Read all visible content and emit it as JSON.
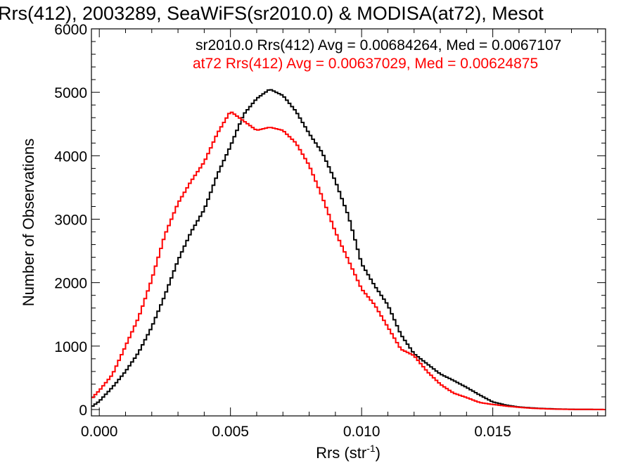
{
  "chart_data": {
    "type": "line",
    "title": "Rrs(412), 2003289, SeaWiFS(sr2010.0) & MODISA(at72), Mesot",
    "xlabel": "Rrs (str",
    "xlabel_sup": "-1",
    "xlabel_close": ")",
    "ylabel": "Number of Observations",
    "xlim": [
      -0.0003,
      0.0193
    ],
    "ylim": [
      -100,
      6000
    ],
    "x_ticks": [
      {
        "value": 0.0,
        "label": "0.000"
      },
      {
        "value": 0.005,
        "label": "0.005"
      },
      {
        "value": 0.01,
        "label": "0.010"
      },
      {
        "value": 0.015,
        "label": "0.015"
      }
    ],
    "y_ticks": [
      {
        "value": 0,
        "label": "0"
      },
      {
        "value": 1000,
        "label": "1000"
      },
      {
        "value": 2000,
        "label": "2000"
      },
      {
        "value": 3000,
        "label": "3000"
      },
      {
        "value": 4000,
        "label": "4000"
      },
      {
        "value": 5000,
        "label": "5000"
      },
      {
        "value": 6000,
        "label": "6000"
      }
    ],
    "grid": false,
    "legend_position": "top-right",
    "series": [
      {
        "name": "sr2010.0 Rrs(412) Avg = 0.00684264, Med = 0.0067107",
        "color": "#000000",
        "x": [
          -0.0003,
          0.0,
          0.0005,
          0.001,
          0.0015,
          0.002,
          0.0025,
          0.003,
          0.0035,
          0.004,
          0.0045,
          0.005,
          0.0055,
          0.006,
          0.0065,
          0.007,
          0.0075,
          0.008,
          0.0085,
          0.009,
          0.0095,
          0.01,
          0.0105,
          0.011,
          0.0115,
          0.012,
          0.0125,
          0.013,
          0.0135,
          0.014,
          0.0145,
          0.015,
          0.0155,
          0.016,
          0.0165,
          0.017,
          0.0175,
          0.018,
          0.0185,
          0.019,
          0.0193
        ],
        "y": [
          40,
          130,
          350,
          600,
          900,
          1300,
          1800,
          2350,
          2800,
          3150,
          3700,
          4150,
          4650,
          4900,
          5050,
          4950,
          4700,
          4350,
          4050,
          3600,
          3050,
          2300,
          1950,
          1650,
          1180,
          880,
          720,
          560,
          460,
          350,
          230,
          120,
          70,
          40,
          25,
          15,
          8,
          4,
          2,
          1,
          0
        ]
      },
      {
        "name": "at72 Rrs(412) Avg = 0.00637029, Med = 0.00624875",
        "color": "#ff0000",
        "x": [
          -0.0003,
          0.0,
          0.0005,
          0.001,
          0.0015,
          0.002,
          0.0025,
          0.003,
          0.0035,
          0.004,
          0.0045,
          0.005,
          0.0055,
          0.006,
          0.0065,
          0.007,
          0.0075,
          0.008,
          0.0085,
          0.009,
          0.0095,
          0.01,
          0.0105,
          0.011,
          0.0115,
          0.012,
          0.0125,
          0.013,
          0.0135,
          0.014,
          0.0145,
          0.015,
          0.0155,
          0.016,
          0.0165,
          0.017,
          0.0175,
          0.018,
          0.0185,
          0.019,
          0.0193
        ],
        "y": [
          170,
          300,
          550,
          1000,
          1450,
          2050,
          2750,
          3250,
          3600,
          3900,
          4350,
          4700,
          4550,
          4400,
          4450,
          4400,
          4200,
          3850,
          3350,
          2800,
          2350,
          1900,
          1650,
          1300,
          950,
          850,
          600,
          400,
          260,
          190,
          110,
          80,
          55,
          35,
          20,
          12,
          6,
          3,
          2,
          1,
          0
        ]
      }
    ]
  }
}
